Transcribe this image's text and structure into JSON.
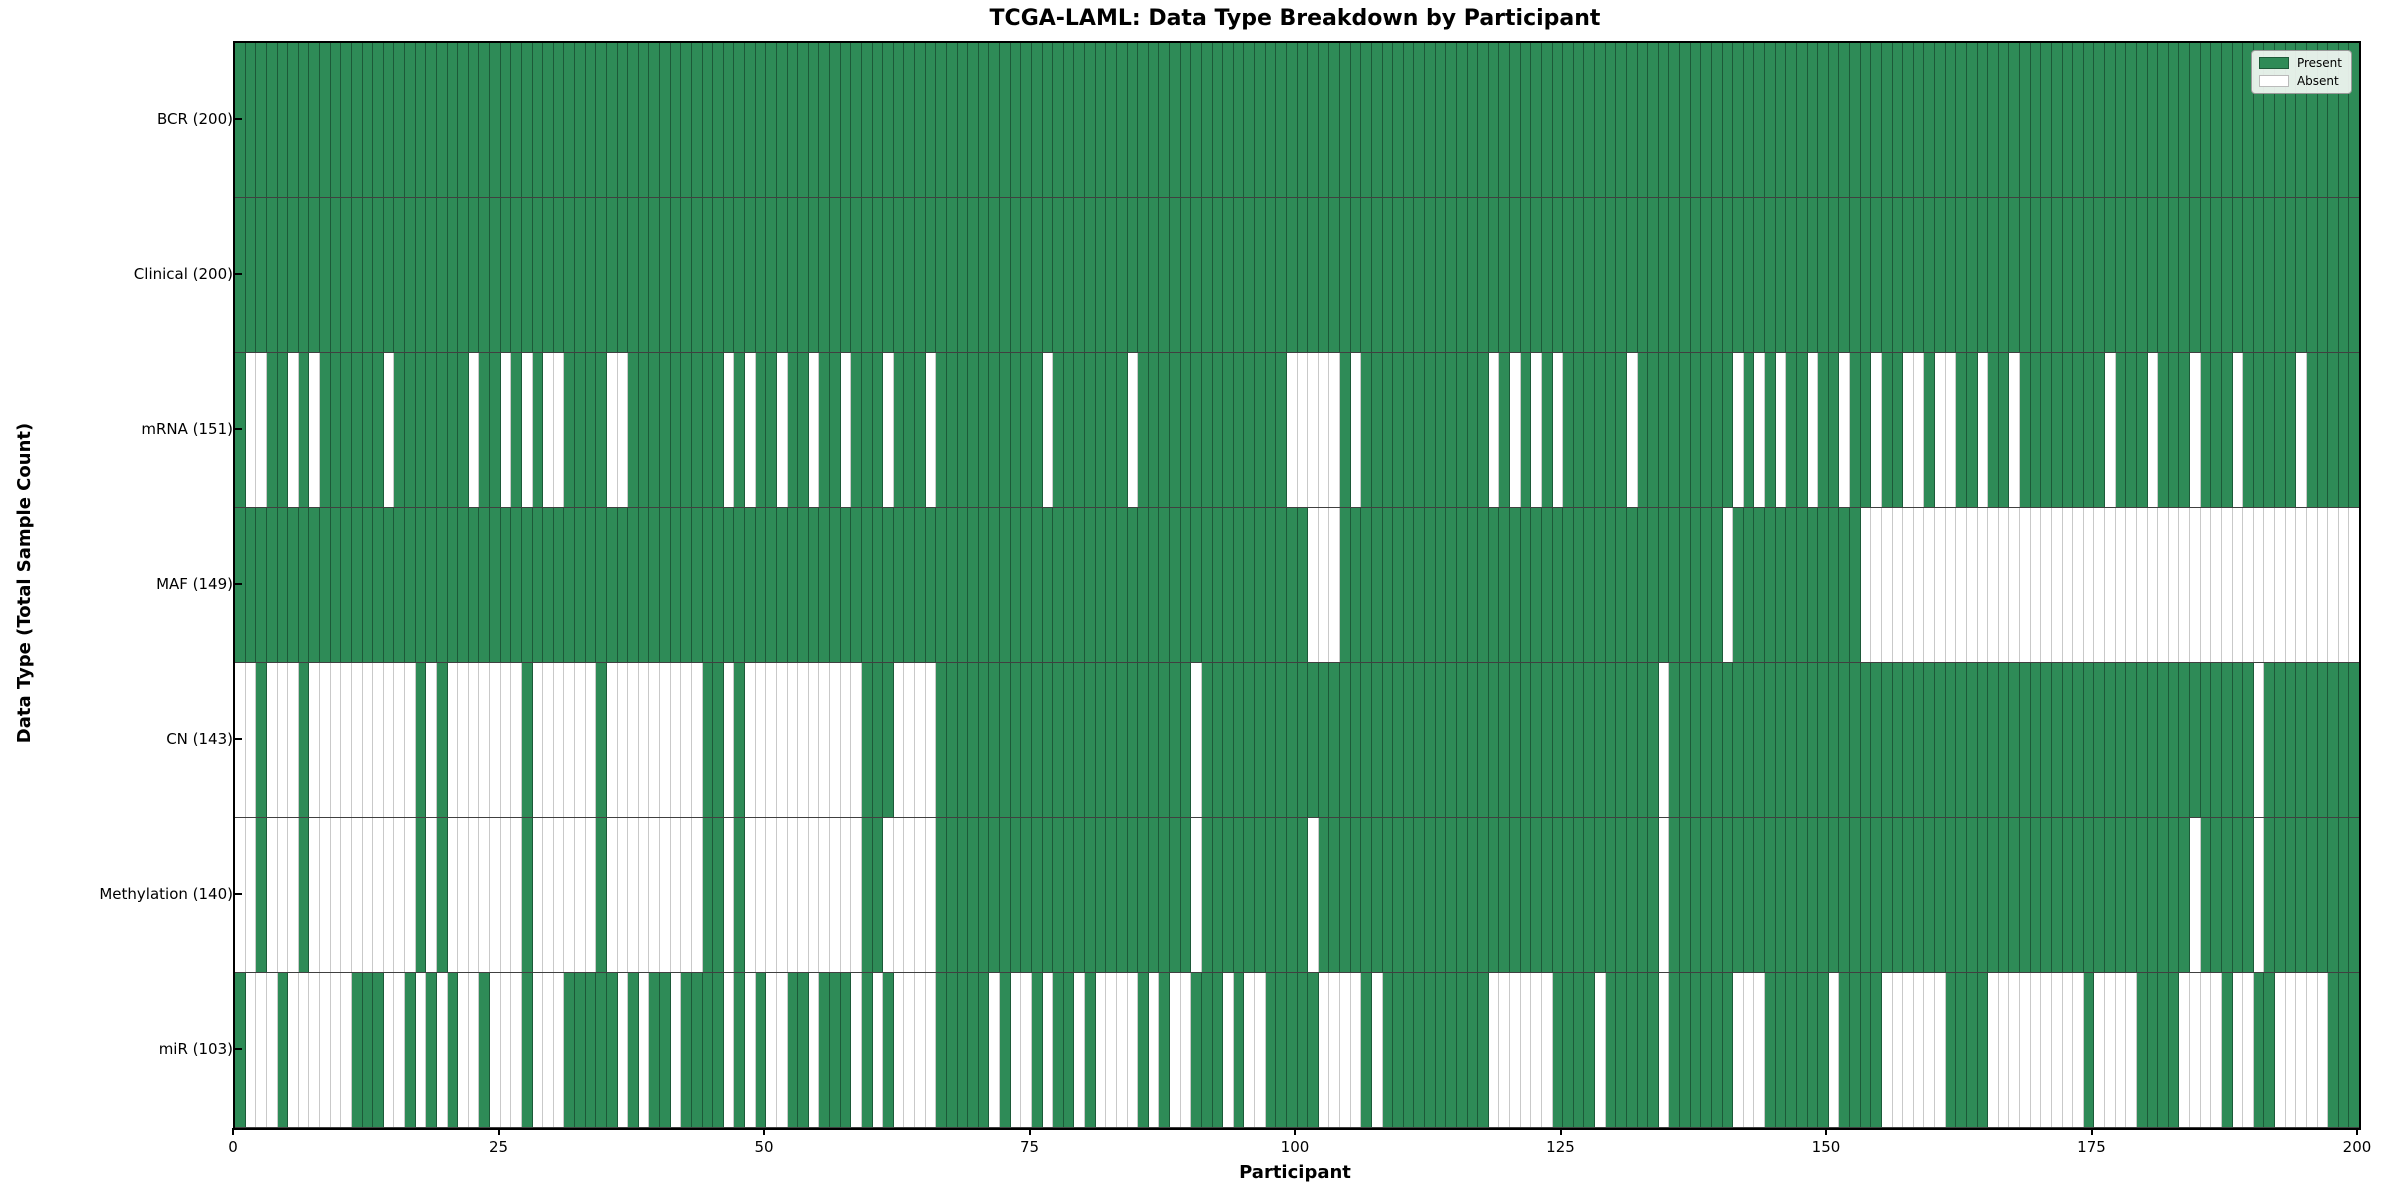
{
  "title": "TCGA-LAML: Data Type Breakdown by Participant",
  "xlabel": "Participant",
  "ylabel": "Data Type (Total Sample Count)",
  "legend": {
    "present_label": "Present",
    "absent_label": "Absent"
  },
  "colors": {
    "present": "#2e8b57",
    "absent": "#ffffff",
    "present_edge": "rgba(10,40,25,0.5)",
    "absent_edge": "#c9c9c9"
  },
  "axis": {
    "x_ticks": [
      0,
      25,
      50,
      75,
      100,
      125,
      150,
      175,
      200
    ],
    "n_participants": 200
  },
  "chart_data": {
    "type": "heatmap",
    "title": "TCGA-LAML: Data Type Breakdown by Participant",
    "xlabel": "Participant",
    "ylabel": "Data Type (Total Sample Count)",
    "x_range": [
      0,
      200
    ],
    "grid": false,
    "legend_position": "upper right",
    "legend_entries": [
      "Present",
      "Absent"
    ],
    "cell_states": {
      "present": 1,
      "absent": 0
    },
    "rows": [
      {
        "label": "BCR (200)",
        "name": "BCR",
        "total_samples": 200,
        "absent_participants": []
      },
      {
        "label": "Clinical (200)",
        "name": "Clinical",
        "total_samples": 200,
        "absent_participants": []
      },
      {
        "label": "mRNA (151)",
        "name": "mRNA",
        "total_samples": 151,
        "absent_participants": [
          1,
          2,
          5,
          7,
          14,
          22,
          25,
          27,
          29,
          30,
          35,
          36,
          46,
          48,
          51,
          54,
          57,
          61,
          65,
          76,
          84,
          99,
          100,
          101,
          102,
          103,
          105,
          118,
          120,
          122,
          124,
          131,
          141,
          143,
          145,
          148,
          151,
          154,
          157,
          158,
          160,
          161,
          164,
          167,
          176,
          180,
          184,
          188,
          194
        ]
      },
      {
        "label": "MAF (149)",
        "name": "MAF",
        "total_samples": 149,
        "absent_participants": [
          101,
          102,
          103,
          140,
          153,
          154,
          155,
          156,
          157,
          158,
          159,
          160,
          161,
          162,
          163,
          164,
          165,
          166,
          167,
          168,
          169,
          170,
          171,
          172,
          173,
          174,
          175,
          176,
          177,
          178,
          179,
          180,
          181,
          182,
          183,
          184,
          185,
          186,
          187,
          188,
          189,
          190,
          191,
          192,
          193,
          194,
          195,
          196,
          197,
          198,
          199
        ]
      },
      {
        "label": "CN (143)",
        "name": "CN",
        "total_samples": 143,
        "absent_participants": [
          0,
          1,
          3,
          4,
          5,
          7,
          8,
          9,
          10,
          11,
          12,
          13,
          14,
          15,
          16,
          18,
          20,
          21,
          22,
          23,
          24,
          25,
          26,
          28,
          29,
          30,
          31,
          32,
          33,
          35,
          36,
          37,
          38,
          39,
          40,
          41,
          42,
          43,
          46,
          48,
          49,
          50,
          51,
          52,
          53,
          54,
          55,
          56,
          57,
          58,
          62,
          63,
          64,
          65,
          90,
          134,
          190
        ]
      },
      {
        "label": "Methylation (140)",
        "name": "Methylation",
        "total_samples": 140,
        "absent_participants": [
          0,
          1,
          3,
          4,
          5,
          7,
          8,
          9,
          10,
          11,
          12,
          13,
          14,
          15,
          16,
          18,
          20,
          21,
          22,
          23,
          24,
          25,
          26,
          28,
          29,
          30,
          31,
          32,
          33,
          35,
          36,
          37,
          38,
          39,
          40,
          41,
          42,
          43,
          46,
          48,
          49,
          50,
          51,
          52,
          53,
          54,
          55,
          56,
          57,
          58,
          61,
          62,
          63,
          64,
          65,
          90,
          101,
          134,
          184,
          190
        ]
      },
      {
        "label": "miR (103)",
        "name": "miR",
        "total_samples": 103,
        "absent_participants": [
          1,
          2,
          3,
          5,
          6,
          7,
          8,
          9,
          10,
          14,
          15,
          17,
          19,
          21,
          22,
          24,
          25,
          26,
          28,
          29,
          30,
          36,
          38,
          41,
          46,
          48,
          50,
          51,
          54,
          58,
          60,
          62,
          63,
          64,
          65,
          71,
          73,
          74,
          76,
          79,
          81,
          82,
          83,
          84,
          86,
          88,
          89,
          93,
          95,
          96,
          102,
          103,
          104,
          105,
          107,
          118,
          119,
          120,
          121,
          122,
          123,
          128,
          134,
          141,
          142,
          143,
          150,
          155,
          156,
          157,
          158,
          159,
          160,
          165,
          166,
          167,
          168,
          169,
          170,
          171,
          172,
          173,
          175,
          176,
          177,
          178,
          183,
          184,
          185,
          186,
          188,
          189,
          192,
          193,
          194,
          195,
          196
        ]
      }
    ]
  }
}
